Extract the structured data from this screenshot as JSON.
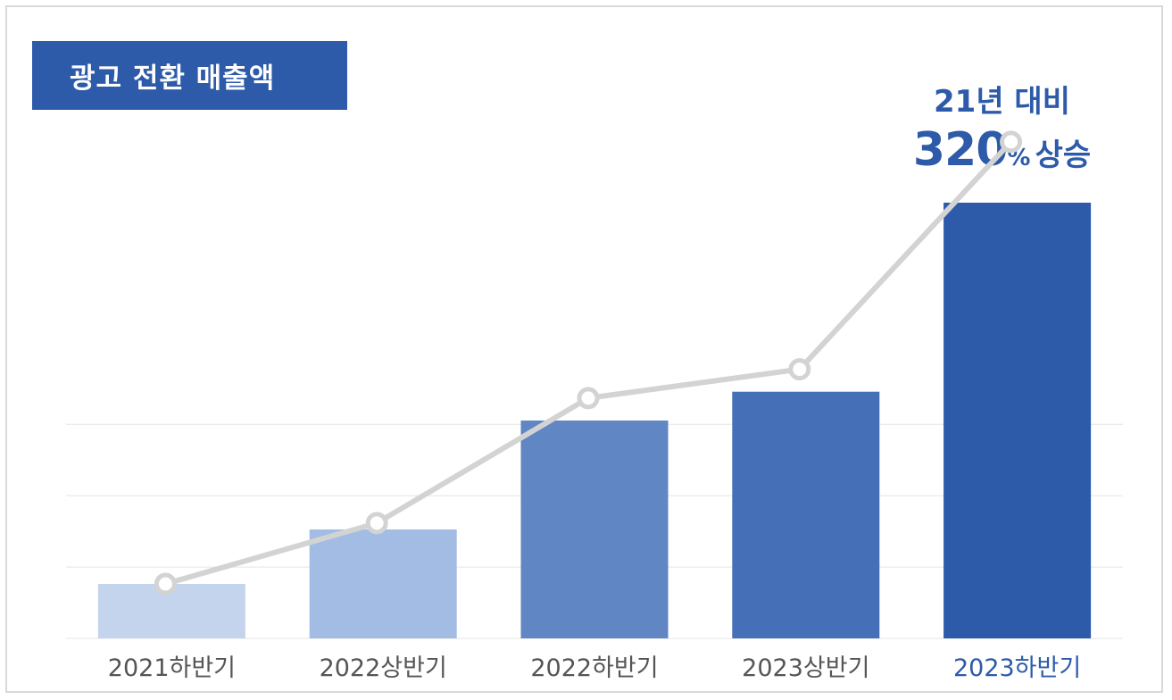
{
  "chart_data": {
    "type": "bar",
    "title": "광고 전환 매출액",
    "categories": [
      "2021하반기",
      "2022상반기",
      "2022하반기",
      "2023상반기",
      "2023하반기"
    ],
    "series": [
      {
        "values": [
          17,
          34,
          68,
          77,
          136
        ]
      }
    ],
    "line_values": [
      17,
      36,
      75,
      84,
      155
    ],
    "ylim": [
      0,
      170
    ],
    "grid": true,
    "highlight_category_index": 4,
    "annotation": {
      "line1": "21년 대비",
      "value": "320",
      "unit": "%",
      "rise": "상승"
    },
    "colors": {
      "bars": [
        "#c3d4ec",
        "#a2bce3",
        "#6086c4",
        "#456fb6",
        "#2d5aa9"
      ],
      "line": "#d3d3d3",
      "grid": "#e4e4e4",
      "label": "#555555",
      "label_highlight": "#2d5aa9",
      "accent": "#2d5aa9"
    }
  }
}
